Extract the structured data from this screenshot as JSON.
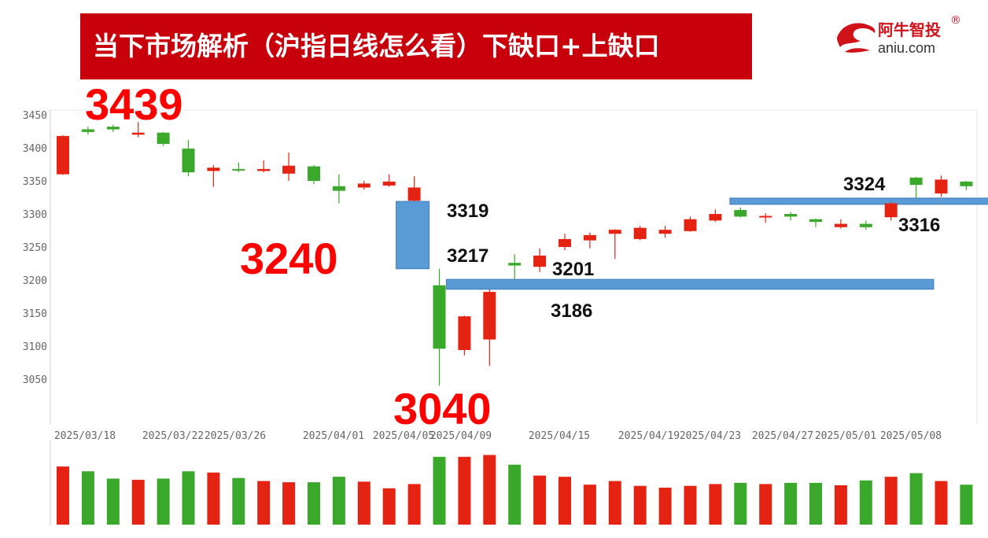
{
  "header": {
    "title": "当下市场解析（沪指日线怎么看）下缺口+上缺口",
    "logo_cn": "阿牛智投",
    "logo_reg": "®",
    "logo_en": "aniu.com"
  },
  "colors": {
    "banner": "#c8000b",
    "up": "#e42313",
    "down": "#3aa82b",
    "gap_box": "#5b9bd5",
    "big_label": "#ff0000",
    "logo": "#d0121b"
  },
  "chart_data": {
    "type": "candlestick",
    "ylim": [
      3000,
      3460
    ],
    "y_ticks": [
      3050,
      3100,
      3150,
      3200,
      3250,
      3300,
      3350,
      3400,
      3450
    ],
    "x_tick_labels": [
      "2025/03/18",
      "2025/03/22",
      "2025/03/26",
      "2025/04/01",
      "2025/04/05",
      "2025/04/09",
      "2025/04/15",
      "2025/04/19",
      "2025/04/23",
      "2025/04/27",
      "2025/05/01",
      "2025/05/08"
    ],
    "candles": [
      {
        "open": 3360,
        "close": 3418,
        "high": 3419,
        "low": 3359,
        "dir": "up"
      },
      {
        "open": 3428,
        "close": 3424,
        "high": 3432,
        "low": 3420,
        "dir": "down"
      },
      {
        "open": 3432,
        "close": 3428,
        "high": 3435,
        "low": 3424,
        "dir": "down"
      },
      {
        "open": 3420,
        "close": 3423,
        "high": 3439,
        "low": 3416,
        "dir": "up"
      },
      {
        "open": 3423,
        "close": 3406,
        "high": 3424,
        "low": 3403,
        "dir": "down"
      },
      {
        "open": 3399,
        "close": 3363,
        "high": 3412,
        "low": 3357,
        "dir": "down"
      },
      {
        "open": 3365,
        "close": 3370,
        "high": 3374,
        "low": 3341,
        "dir": "up"
      },
      {
        "open": 3368,
        "close": 3368,
        "high": 3378,
        "low": 3363,
        "dir": "down"
      },
      {
        "open": 3365,
        "close": 3368,
        "high": 3381,
        "low": 3363,
        "dir": "up"
      },
      {
        "open": 3361,
        "close": 3373,
        "high": 3393,
        "low": 3350,
        "dir": "up"
      },
      {
        "open": 3372,
        "close": 3350,
        "high": 3374,
        "low": 3345,
        "dir": "down"
      },
      {
        "open": 3342,
        "close": 3335,
        "high": 3360,
        "low": 3316,
        "dir": "down"
      },
      {
        "open": 3340,
        "close": 3346,
        "high": 3350,
        "low": 3337,
        "dir": "up"
      },
      {
        "open": 3343,
        "close": 3349,
        "high": 3360,
        "low": 3341,
        "dir": "up"
      },
      {
        "open": 3320,
        "close": 3340,
        "high": 3357,
        "low": 3319,
        "dir": "up"
      },
      {
        "open": 3192,
        "close": 3096,
        "high": 3217,
        "low": 3040,
        "dir": "down"
      },
      {
        "open": 3094,
        "close": 3145,
        "high": 3146,
        "low": 3086,
        "dir": "up"
      },
      {
        "open": 3110,
        "close": 3182,
        "high": 3186,
        "low": 3070,
        "dir": "up"
      },
      {
        "open": 3226,
        "close": 3222,
        "high": 3239,
        "low": 3201,
        "dir": "down"
      },
      {
        "open": 3220,
        "close": 3237,
        "high": 3248,
        "low": 3212,
        "dir": "up"
      },
      {
        "open": 3250,
        "close": 3262,
        "high": 3270,
        "low": 3245,
        "dir": "up"
      },
      {
        "open": 3260,
        "close": 3268,
        "high": 3272,
        "low": 3248,
        "dir": "up"
      },
      {
        "open": 3270,
        "close": 3276,
        "high": 3277,
        "low": 3232,
        "dir": "up"
      },
      {
        "open": 3262,
        "close": 3279,
        "high": 3282,
        "low": 3260,
        "dir": "up"
      },
      {
        "open": 3270,
        "close": 3276,
        "high": 3282,
        "low": 3264,
        "dir": "up"
      },
      {
        "open": 3274,
        "close": 3292,
        "high": 3296,
        "low": 3273,
        "dir": "up"
      },
      {
        "open": 3290,
        "close": 3300,
        "high": 3307,
        "low": 3288,
        "dir": "up"
      },
      {
        "open": 3306,
        "close": 3296,
        "high": 3310,
        "low": 3295,
        "dir": "down"
      },
      {
        "open": 3295,
        "close": 3297,
        "high": 3301,
        "low": 3287,
        "dir": "up"
      },
      {
        "open": 3300,
        "close": 3296,
        "high": 3303,
        "low": 3290,
        "dir": "down"
      },
      {
        "open": 3292,
        "close": 3288,
        "high": 3293,
        "low": 3280,
        "dir": "down"
      },
      {
        "open": 3280,
        "close": 3285,
        "high": 3292,
        "low": 3278,
        "dir": "up"
      },
      {
        "open": 3285,
        "close": 3280,
        "high": 3290,
        "low": 3276,
        "dir": "down"
      },
      {
        "open": 3295,
        "close": 3316,
        "high": 3318,
        "low": 3290,
        "dir": "up"
      },
      {
        "open": 3355,
        "close": 3344,
        "high": 3356,
        "low": 3324,
        "dir": "down"
      },
      {
        "open": 3331,
        "close": 3352,
        "high": 3358,
        "low": 3326,
        "dir": "up"
      },
      {
        "open": 3349,
        "close": 3342,
        "high": 3350,
        "low": 3336,
        "dir": "down"
      }
    ],
    "volume_relative": [
      0.96,
      0.88,
      0.76,
      0.74,
      0.76,
      0.88,
      0.86,
      0.77,
      0.72,
      0.7,
      0.7,
      0.79,
      0.71,
      0.6,
      0.67,
      1.12,
      1.12,
      1.15,
      0.99,
      0.81,
      0.79,
      0.66,
      0.72,
      0.64,
      0.61,
      0.64,
      0.67,
      0.69,
      0.67,
      0.69,
      0.69,
      0.65,
      0.73,
      0.79,
      0.85,
      0.72,
      0.66
    ],
    "gaps": [
      {
        "kind": "box",
        "low": 3217,
        "high": 3319,
        "from": 14,
        "to": 14
      },
      {
        "kind": "band",
        "low": 3186,
        "high": 3201,
        "from": 16,
        "to": 34.7
      },
      {
        "kind": "band",
        "low": 3316,
        "high": 3324,
        "from": 27.3,
        "to": 37
      }
    ],
    "annotations": [
      {
        "text": "3439",
        "style": "big"
      },
      {
        "text": "3240",
        "style": "big"
      },
      {
        "text": "3040",
        "style": "big"
      },
      {
        "text": "3319",
        "style": "small"
      },
      {
        "text": "3217",
        "style": "small"
      },
      {
        "text": "3201",
        "style": "small"
      },
      {
        "text": "3186",
        "style": "small"
      },
      {
        "text": "3324",
        "style": "small"
      },
      {
        "text": "3316",
        "style": "small"
      }
    ]
  }
}
